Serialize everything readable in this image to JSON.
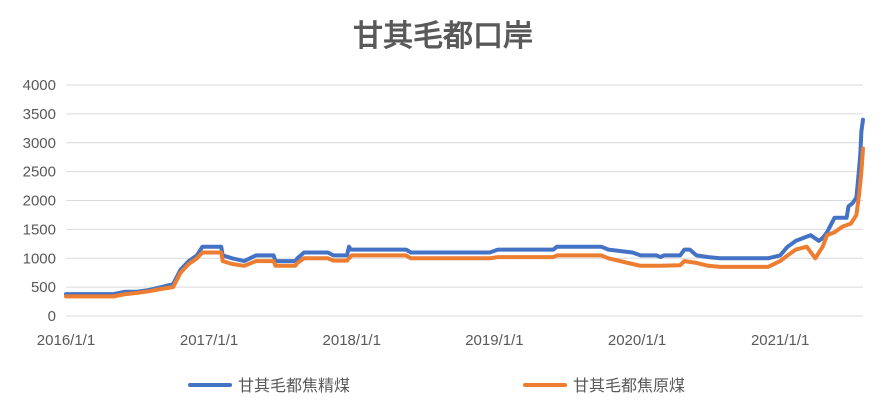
{
  "chart_data": {
    "type": "line",
    "title": "甘其毛都口岸",
    "xlabel": "",
    "ylabel": "",
    "ylim": [
      0,
      4000
    ],
    "y_ticks": [
      "0",
      "500",
      "1000",
      "1500",
      "2000",
      "2500",
      "3000",
      "3500",
      "4000"
    ],
    "x_range": [
      "2016/1/1",
      "2021/8/1"
    ],
    "x_ticks": [
      "2016/1/1",
      "2017/1/1",
      "2018/1/1",
      "2019/1/1",
      "2020/1/1",
      "2021/1/1"
    ],
    "grid": "horizontal",
    "legend_position": "bottom",
    "series": [
      {
        "name": "甘其毛都焦精煤",
        "color": "#4472C4",
        "points": [
          [
            "2016-01-01",
            380
          ],
          [
            "2016-03-01",
            380
          ],
          [
            "2016-05-01",
            380
          ],
          [
            "2016-06-01",
            420
          ],
          [
            "2016-07-01",
            420
          ],
          [
            "2016-08-01",
            450
          ],
          [
            "2016-09-01",
            500
          ],
          [
            "2016-10-01",
            550
          ],
          [
            "2016-10-20",
            800
          ],
          [
            "2016-11-10",
            950
          ],
          [
            "2016-12-01",
            1050
          ],
          [
            "2016-12-15",
            1200
          ],
          [
            "2017-02-01",
            1200
          ],
          [
            "2017-02-05",
            1050
          ],
          [
            "2017-03-01",
            1000
          ],
          [
            "2017-04-01",
            950
          ],
          [
            "2017-05-01",
            1050
          ],
          [
            "2017-06-15",
            1050
          ],
          [
            "2017-06-20",
            950
          ],
          [
            "2017-08-10",
            950
          ],
          [
            "2017-08-15",
            1000
          ],
          [
            "2017-09-01",
            1100
          ],
          [
            "2017-11-01",
            1100
          ],
          [
            "2017-11-15",
            1050
          ],
          [
            "2017-12-20",
            1050
          ],
          [
            "2017-12-25",
            1200
          ],
          [
            "2017-12-30",
            1150
          ],
          [
            "2018-05-20",
            1150
          ],
          [
            "2018-06-01",
            1100
          ],
          [
            "2018-12-20",
            1100
          ],
          [
            "2019-01-10",
            1150
          ],
          [
            "2019-06-01",
            1150
          ],
          [
            "2019-06-10",
            1200
          ],
          [
            "2019-10-01",
            1200
          ],
          [
            "2019-10-20",
            1150
          ],
          [
            "2019-12-20",
            1100
          ],
          [
            "2020-01-10",
            1050
          ],
          [
            "2020-02-20",
            1050
          ],
          [
            "2020-03-01",
            1020
          ],
          [
            "2020-03-10",
            1050
          ],
          [
            "2020-04-20",
            1050
          ],
          [
            "2020-05-01",
            1150
          ],
          [
            "2020-05-15",
            1150
          ],
          [
            "2020-06-01",
            1050
          ],
          [
            "2020-07-01",
            1020
          ],
          [
            "2020-08-01",
            1000
          ],
          [
            "2020-12-01",
            1000
          ],
          [
            "2021-01-01",
            1050
          ],
          [
            "2021-01-20",
            1200
          ],
          [
            "2021-02-10",
            1300
          ],
          [
            "2021-03-01",
            1350
          ],
          [
            "2021-03-20",
            1400
          ],
          [
            "2021-04-10",
            1300
          ],
          [
            "2021-04-20",
            1350
          ],
          [
            "2021-05-01",
            1450
          ],
          [
            "2021-05-20",
            1700
          ],
          [
            "2021-06-20",
            1700
          ],
          [
            "2021-06-25",
            1900
          ],
          [
            "2021-07-05",
            1950
          ],
          [
            "2021-07-15",
            2050
          ],
          [
            "2021-07-20",
            2400
          ],
          [
            "2021-07-25",
            2800
          ],
          [
            "2021-07-28",
            3200
          ],
          [
            "2021-08-01",
            3400
          ]
        ]
      },
      {
        "name": "甘其毛都焦原煤",
        "color": "#ED7D31",
        "points": [
          [
            "2016-01-01",
            340
          ],
          [
            "2016-05-01",
            340
          ],
          [
            "2016-06-01",
            380
          ],
          [
            "2016-07-01",
            400
          ],
          [
            "2016-08-01",
            430
          ],
          [
            "2016-09-01",
            470
          ],
          [
            "2016-10-01",
            500
          ],
          [
            "2016-10-20",
            750
          ],
          [
            "2016-11-10",
            900
          ],
          [
            "2016-12-01",
            1000
          ],
          [
            "2016-12-15",
            1100
          ],
          [
            "2017-02-01",
            1100
          ],
          [
            "2017-02-05",
            950
          ],
          [
            "2017-03-01",
            900
          ],
          [
            "2017-04-01",
            870
          ],
          [
            "2017-05-01",
            950
          ],
          [
            "2017-06-15",
            950
          ],
          [
            "2017-06-20",
            870
          ],
          [
            "2017-08-10",
            870
          ],
          [
            "2017-08-15",
            920
          ],
          [
            "2017-09-01",
            1000
          ],
          [
            "2017-11-01",
            1000
          ],
          [
            "2017-11-15",
            960
          ],
          [
            "2017-12-20",
            960
          ],
          [
            "2018-01-01",
            1050
          ],
          [
            "2018-05-20",
            1050
          ],
          [
            "2018-06-01",
            1000
          ],
          [
            "2018-12-20",
            1000
          ],
          [
            "2019-01-10",
            1020
          ],
          [
            "2019-06-01",
            1020
          ],
          [
            "2019-06-10",
            1050
          ],
          [
            "2019-10-01",
            1050
          ],
          [
            "2019-10-20",
            1000
          ],
          [
            "2019-12-20",
            900
          ],
          [
            "2020-01-10",
            870
          ],
          [
            "2020-03-01",
            870
          ],
          [
            "2020-04-20",
            880
          ],
          [
            "2020-05-01",
            950
          ],
          [
            "2020-06-01",
            920
          ],
          [
            "2020-07-01",
            870
          ],
          [
            "2020-08-01",
            850
          ],
          [
            "2020-12-01",
            850
          ],
          [
            "2021-01-01",
            950
          ],
          [
            "2021-01-20",
            1050
          ],
          [
            "2021-02-10",
            1150
          ],
          [
            "2021-03-10",
            1200
          ],
          [
            "2021-04-01",
            1000
          ],
          [
            "2021-04-20",
            1200
          ],
          [
            "2021-05-01",
            1400
          ],
          [
            "2021-05-20",
            1450
          ],
          [
            "2021-06-10",
            1550
          ],
          [
            "2021-07-01",
            1600
          ],
          [
            "2021-07-15",
            1750
          ],
          [
            "2021-07-22",
            2100
          ],
          [
            "2021-07-28",
            2500
          ],
          [
            "2021-08-01",
            2900
          ]
        ]
      }
    ]
  }
}
